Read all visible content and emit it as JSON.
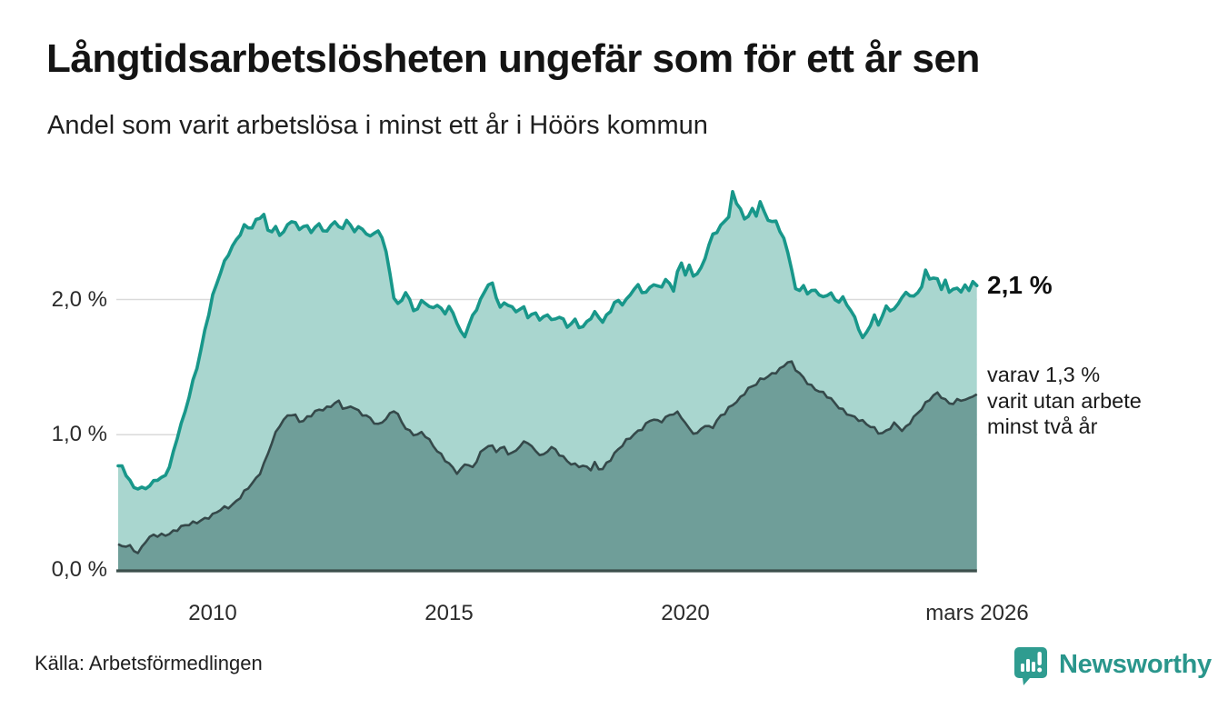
{
  "header": {
    "title": "Långtidsarbetslösheten ungefär som för ett år sen",
    "subtitle": "Andel som varit arbetslösa i minst ett år i Höörs kommun"
  },
  "chart_data": {
    "type": "area",
    "title": "Långtidsarbetslösheten ungefär som för ett år sen",
    "subtitle": "Andel som varit arbetslösa i minst ett år i Höörs kommun",
    "unit": "percent",
    "grid": "horizontal",
    "x_axis": {
      "range_years": [
        2008.0,
        2026.25
      ],
      "ticks": [
        {
          "label": "2010",
          "year": 2010
        },
        {
          "label": "2015",
          "year": 2015
        },
        {
          "label": "2020",
          "year": 2020
        },
        {
          "label": "mars 2026",
          "year": 2026.17
        }
      ]
    },
    "y_axis": {
      "range": [
        0,
        2.95
      ],
      "ticks": [
        {
          "label": "2,0 %",
          "value": 2.0
        },
        {
          "label": "1,0 %",
          "value": 1.0
        },
        {
          "label": "0,0 %",
          "value": 0.0
        }
      ],
      "gridline_values": [
        2.0,
        1.0
      ]
    },
    "colors": {
      "total_line": "#18978a",
      "total_fill": "#a9d6cf",
      "subset_line": "#35494a",
      "subset_fill": "#6f9e99",
      "gridline": "#dadada",
      "baseline": "#3c4f4c"
    },
    "series": [
      {
        "name": "Andel arbetslösa minst ett år",
        "end_value": 2.1,
        "points": [
          [
            2008.0,
            0.77
          ],
          [
            2008.08,
            0.76
          ],
          [
            2008.17,
            0.71
          ],
          [
            2008.25,
            0.66
          ],
          [
            2008.33,
            0.62
          ],
          [
            2008.5,
            0.6
          ],
          [
            2008.67,
            0.61
          ],
          [
            2008.79,
            0.67
          ],
          [
            2008.95,
            0.68
          ],
          [
            2009.1,
            0.78
          ],
          [
            2009.25,
            0.98
          ],
          [
            2009.4,
            1.14
          ],
          [
            2009.55,
            1.35
          ],
          [
            2009.7,
            1.55
          ],
          [
            2009.85,
            1.8
          ],
          [
            2010.0,
            2.02
          ],
          [
            2010.15,
            2.18
          ],
          [
            2010.3,
            2.32
          ],
          [
            2010.45,
            2.42
          ],
          [
            2010.6,
            2.5
          ],
          [
            2010.7,
            2.56
          ],
          [
            2010.8,
            2.5
          ],
          [
            2010.95,
            2.6
          ],
          [
            2011.08,
            2.63
          ],
          [
            2011.2,
            2.48
          ],
          [
            2011.3,
            2.55
          ],
          [
            2011.45,
            2.46
          ],
          [
            2011.6,
            2.55
          ],
          [
            2011.7,
            2.6
          ],
          [
            2011.8,
            2.52
          ],
          [
            2011.95,
            2.56
          ],
          [
            2012.1,
            2.5
          ],
          [
            2012.25,
            2.55
          ],
          [
            2012.4,
            2.48
          ],
          [
            2012.55,
            2.6
          ],
          [
            2012.7,
            2.52
          ],
          [
            2012.85,
            2.58
          ],
          [
            2013.0,
            2.5
          ],
          [
            2013.15,
            2.54
          ],
          [
            2013.3,
            2.46
          ],
          [
            2013.45,
            2.52
          ],
          [
            2013.6,
            2.45
          ],
          [
            2013.7,
            2.3
          ],
          [
            2013.8,
            2.05
          ],
          [
            2013.9,
            1.96
          ],
          [
            2014.0,
            2.0
          ],
          [
            2014.1,
            2.08
          ],
          [
            2014.2,
            1.95
          ],
          [
            2014.3,
            1.9
          ],
          [
            2014.45,
            2.0
          ],
          [
            2014.6,
            1.93
          ],
          [
            2014.75,
            1.97
          ],
          [
            2014.9,
            1.9
          ],
          [
            2015.0,
            1.94
          ],
          [
            2015.1,
            1.88
          ],
          [
            2015.2,
            1.8
          ],
          [
            2015.3,
            1.7
          ],
          [
            2015.45,
            1.85
          ],
          [
            2015.6,
            1.95
          ],
          [
            2015.75,
            2.05
          ],
          [
            2015.88,
            2.14
          ],
          [
            2016.0,
            2.02
          ],
          [
            2016.1,
            1.93
          ],
          [
            2016.2,
            2.0
          ],
          [
            2016.3,
            1.95
          ],
          [
            2016.45,
            1.9
          ],
          [
            2016.55,
            1.95
          ],
          [
            2016.7,
            1.85
          ],
          [
            2016.8,
            1.92
          ],
          [
            2016.95,
            1.85
          ],
          [
            2017.1,
            1.9
          ],
          [
            2017.2,
            1.82
          ],
          [
            2017.35,
            1.88
          ],
          [
            2017.5,
            1.8
          ],
          [
            2017.65,
            1.86
          ],
          [
            2017.8,
            1.78
          ],
          [
            2017.95,
            1.84
          ],
          [
            2018.1,
            1.9
          ],
          [
            2018.25,
            1.84
          ],
          [
            2018.4,
            1.92
          ],
          [
            2018.55,
            2.0
          ],
          [
            2018.7,
            1.95
          ],
          [
            2018.85,
            2.05
          ],
          [
            2019.0,
            2.11
          ],
          [
            2019.15,
            2.04
          ],
          [
            2019.3,
            2.12
          ],
          [
            2019.45,
            2.07
          ],
          [
            2019.6,
            2.15
          ],
          [
            2019.75,
            2.08
          ],
          [
            2019.9,
            2.3
          ],
          [
            2020.0,
            2.18
          ],
          [
            2020.1,
            2.25
          ],
          [
            2020.2,
            2.14
          ],
          [
            2020.35,
            2.25
          ],
          [
            2020.5,
            2.4
          ],
          [
            2020.6,
            2.52
          ],
          [
            2020.7,
            2.48
          ],
          [
            2020.8,
            2.6
          ],
          [
            2020.9,
            2.55
          ],
          [
            2021.0,
            2.8
          ],
          [
            2021.1,
            2.7
          ],
          [
            2021.2,
            2.65
          ],
          [
            2021.3,
            2.58
          ],
          [
            2021.4,
            2.68
          ],
          [
            2021.5,
            2.62
          ],
          [
            2021.6,
            2.72
          ],
          [
            2021.7,
            2.62
          ],
          [
            2021.8,
            2.55
          ],
          [
            2021.9,
            2.62
          ],
          [
            2022.0,
            2.5
          ],
          [
            2022.1,
            2.45
          ],
          [
            2022.2,
            2.3
          ],
          [
            2022.3,
            2.1
          ],
          [
            2022.4,
            2.05
          ],
          [
            2022.5,
            2.1
          ],
          [
            2022.6,
            2.05
          ],
          [
            2022.75,
            2.08
          ],
          [
            2022.9,
            2.0
          ],
          [
            2023.05,
            2.05
          ],
          [
            2023.2,
            1.98
          ],
          [
            2023.35,
            2.02
          ],
          [
            2023.5,
            1.92
          ],
          [
            2023.6,
            1.85
          ],
          [
            2023.75,
            1.7
          ],
          [
            2023.9,
            1.8
          ],
          [
            2024.0,
            1.88
          ],
          [
            2024.1,
            1.82
          ],
          [
            2024.25,
            1.95
          ],
          [
            2024.4,
            1.9
          ],
          [
            2024.55,
            2.0
          ],
          [
            2024.7,
            2.06
          ],
          [
            2024.85,
            2.02
          ],
          [
            2025.0,
            2.1
          ],
          [
            2025.1,
            2.22
          ],
          [
            2025.2,
            2.12
          ],
          [
            2025.3,
            2.18
          ],
          [
            2025.4,
            2.08
          ],
          [
            2025.5,
            2.14
          ],
          [
            2025.6,
            2.05
          ],
          [
            2025.7,
            2.1
          ],
          [
            2025.8,
            2.04
          ],
          [
            2025.9,
            2.1
          ],
          [
            2026.0,
            2.06
          ],
          [
            2026.1,
            2.16
          ],
          [
            2026.17,
            2.1
          ]
        ]
      },
      {
        "name": "Andel arbetslösa minst två år",
        "end_value": 1.3,
        "points": [
          [
            2008.0,
            0.19
          ],
          [
            2008.1,
            0.16
          ],
          [
            2008.2,
            0.2
          ],
          [
            2008.33,
            0.15
          ],
          [
            2008.45,
            0.13
          ],
          [
            2008.6,
            0.22
          ],
          [
            2008.75,
            0.25
          ],
          [
            2008.9,
            0.26
          ],
          [
            2009.05,
            0.27
          ],
          [
            2009.2,
            0.29
          ],
          [
            2009.4,
            0.32
          ],
          [
            2009.6,
            0.35
          ],
          [
            2009.8,
            0.38
          ],
          [
            2010.0,
            0.4
          ],
          [
            2010.2,
            0.45
          ],
          [
            2010.4,
            0.48
          ],
          [
            2010.6,
            0.55
          ],
          [
            2010.8,
            0.62
          ],
          [
            2010.95,
            0.68
          ],
          [
            2011.1,
            0.8
          ],
          [
            2011.25,
            0.95
          ],
          [
            2011.4,
            1.06
          ],
          [
            2011.55,
            1.12
          ],
          [
            2011.7,
            1.16
          ],
          [
            2011.85,
            1.1
          ],
          [
            2012.0,
            1.13
          ],
          [
            2012.2,
            1.17
          ],
          [
            2012.4,
            1.19
          ],
          [
            2012.65,
            1.26
          ],
          [
            2012.8,
            1.18
          ],
          [
            2012.95,
            1.21
          ],
          [
            2013.1,
            1.16
          ],
          [
            2013.3,
            1.14
          ],
          [
            2013.5,
            1.07
          ],
          [
            2013.7,
            1.12
          ],
          [
            2013.85,
            1.19
          ],
          [
            2014.0,
            1.1
          ],
          [
            2014.15,
            1.03
          ],
          [
            2014.3,
            0.99
          ],
          [
            2014.45,
            1.01
          ],
          [
            2014.6,
            0.95
          ],
          [
            2014.8,
            0.87
          ],
          [
            2015.0,
            0.78
          ],
          [
            2015.2,
            0.7
          ],
          [
            2015.35,
            0.8
          ],
          [
            2015.5,
            0.76
          ],
          [
            2015.65,
            0.86
          ],
          [
            2015.85,
            0.92
          ],
          [
            2016.0,
            0.88
          ],
          [
            2016.15,
            0.92
          ],
          [
            2016.3,
            0.85
          ],
          [
            2016.5,
            0.91
          ],
          [
            2016.65,
            0.95
          ],
          [
            2016.8,
            0.89
          ],
          [
            2017.0,
            0.85
          ],
          [
            2017.15,
            0.91
          ],
          [
            2017.3,
            0.86
          ],
          [
            2017.45,
            0.82
          ],
          [
            2017.6,
            0.79
          ],
          [
            2017.8,
            0.77
          ],
          [
            2018.0,
            0.74
          ],
          [
            2018.1,
            0.79
          ],
          [
            2018.2,
            0.73
          ],
          [
            2018.35,
            0.8
          ],
          [
            2018.5,
            0.86
          ],
          [
            2018.7,
            0.93
          ],
          [
            2018.9,
            1.0
          ],
          [
            2019.1,
            1.06
          ],
          [
            2019.3,
            1.12
          ],
          [
            2019.45,
            1.08
          ],
          [
            2019.6,
            1.13
          ],
          [
            2019.8,
            1.18
          ],
          [
            2019.95,
            1.12
          ],
          [
            2020.1,
            1.02
          ],
          [
            2020.25,
            1.0
          ],
          [
            2020.4,
            1.08
          ],
          [
            2020.55,
            1.05
          ],
          [
            2020.7,
            1.12
          ],
          [
            2020.85,
            1.16
          ],
          [
            2021.0,
            1.22
          ],
          [
            2021.15,
            1.27
          ],
          [
            2021.3,
            1.34
          ],
          [
            2021.45,
            1.36
          ],
          [
            2021.6,
            1.4
          ],
          [
            2021.75,
            1.43
          ],
          [
            2021.9,
            1.47
          ],
          [
            2022.05,
            1.5
          ],
          [
            2022.2,
            1.55
          ],
          [
            2022.35,
            1.47
          ],
          [
            2022.5,
            1.42
          ],
          [
            2022.65,
            1.37
          ],
          [
            2022.8,
            1.33
          ],
          [
            2023.0,
            1.28
          ],
          [
            2023.2,
            1.22
          ],
          [
            2023.4,
            1.17
          ],
          [
            2023.6,
            1.12
          ],
          [
            2023.8,
            1.08
          ],
          [
            2024.0,
            1.05
          ],
          [
            2024.15,
            1.01
          ],
          [
            2024.3,
            1.04
          ],
          [
            2024.45,
            1.08
          ],
          [
            2024.6,
            1.02
          ],
          [
            2024.75,
            1.1
          ],
          [
            2024.9,
            1.16
          ],
          [
            2025.05,
            1.21
          ],
          [
            2025.2,
            1.27
          ],
          [
            2025.35,
            1.31
          ],
          [
            2025.5,
            1.26
          ],
          [
            2025.65,
            1.23
          ],
          [
            2025.8,
            1.26
          ],
          [
            2025.95,
            1.24
          ],
          [
            2026.05,
            1.29
          ],
          [
            2026.17,
            1.3
          ]
        ]
      }
    ],
    "annotations": {
      "latest_total_label": "2,1 %",
      "subset_line1": "varav 1,3 %",
      "subset_line2": "varit utan arbete",
      "subset_line3": "minst två år"
    }
  },
  "xticks": {
    "t0": "2010",
    "t1": "2015",
    "t2": "2020",
    "t3": "mars 2026"
  },
  "yticks": {
    "t0": "2,0 %",
    "t1": "1,0 %",
    "t2": "0,0 %"
  },
  "footer": {
    "source": "Källa: Arbetsförmedlingen",
    "brand_name": "Newsworthy"
  }
}
